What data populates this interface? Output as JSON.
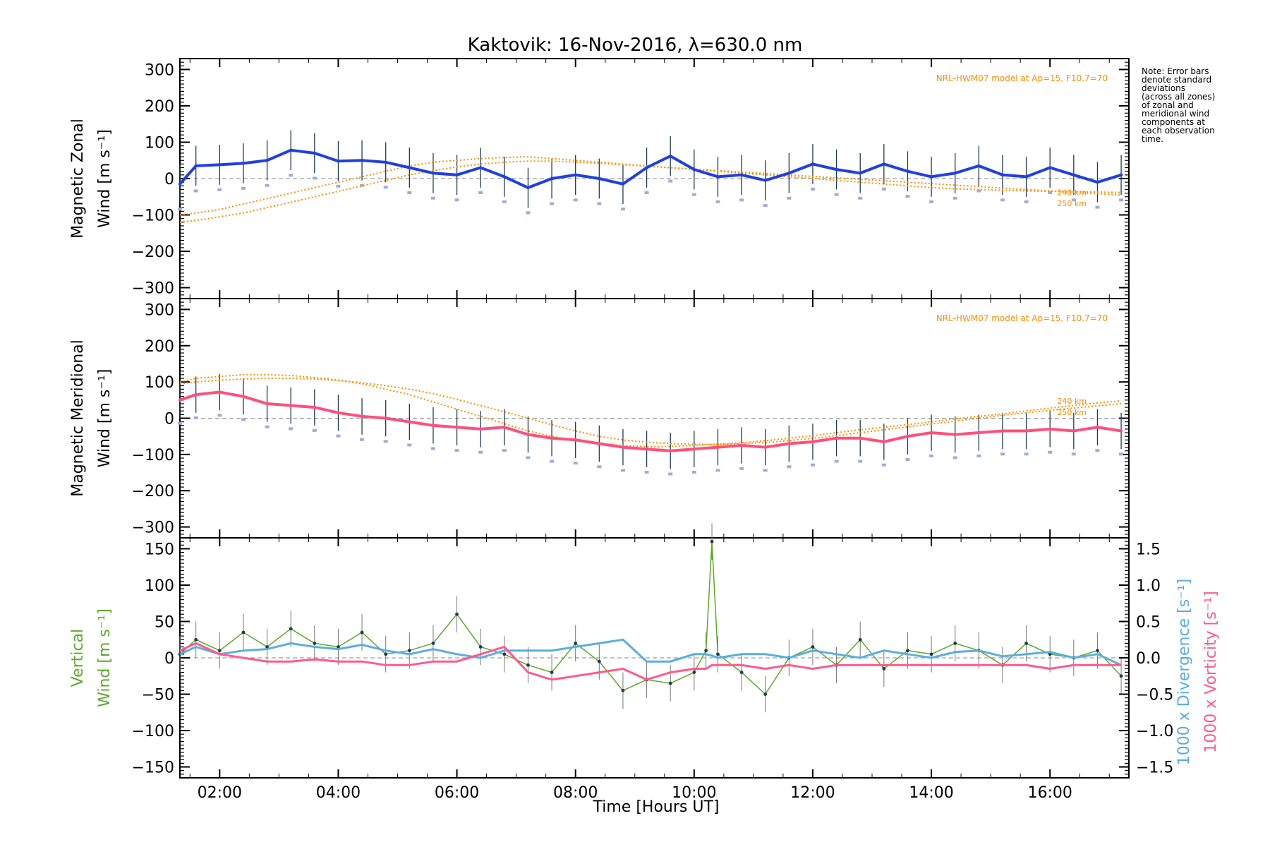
{
  "title": "Kaktovik: 16-Nov-2016, λ=630.0 nm",
  "note": [
    "Note: Error bars",
    "denote standard",
    "deviations",
    "(across all zones)",
    "of zonal and",
    "meridional wind",
    "components at",
    "each observation",
    "time."
  ],
  "model_label": "NRL-HWM07 model at Ap=15, F10.7=70",
  "model_alt_labels": [
    "240 km",
    "250 km"
  ],
  "xlabel": "Time [Hours UT]",
  "colors": {
    "zonal": "#2040e0",
    "zonal_light": "#5aa8e0",
    "meridional": "#ff4f7b",
    "vertical": "#5aaa28",
    "divergence": "#5aaee0",
    "vorticity": "#ff5a8c",
    "model": "#ff8c00",
    "errbar": "#1e3c50",
    "zone_points": "#a8a8d8"
  },
  "chart_data": [
    {
      "type": "line",
      "panel": "zonal",
      "ylabel_lines": [
        "Magnetic Zonal",
        "Wind [m s⁻¹]"
      ],
      "xlim": [
        1.33,
        17.33
      ],
      "ylim": [
        -330,
        330
      ],
      "yticks": [
        -300,
        -200,
        -100,
        0,
        100,
        200,
        300
      ],
      "x": [
        1.33,
        1.6,
        2.0,
        2.4,
        2.8,
        3.2,
        3.6,
        4.0,
        4.4,
        4.8,
        5.2,
        5.6,
        6.0,
        6.4,
        6.8,
        7.2,
        7.6,
        8.0,
        8.4,
        8.8,
        9.2,
        9.6,
        10.0,
        10.4,
        10.8,
        11.2,
        11.6,
        12.0,
        12.4,
        12.8,
        13.2,
        13.6,
        14.0,
        14.4,
        14.8,
        15.2,
        15.6,
        16.0,
        16.4,
        16.8,
        17.2
      ],
      "series": [
        {
          "values": [
            -15,
            35,
            38,
            42,
            50,
            78,
            70,
            48,
            50,
            45,
            30,
            15,
            10,
            30,
            5,
            -25,
            0,
            10,
            0,
            -15,
            30,
            62,
            25,
            5,
            10,
            -5,
            15,
            40,
            25,
            15,
            40,
            20,
            5,
            15,
            35,
            10,
            5,
            30,
            10,
            -10,
            10
          ]
        },
        {
          "values": [
            -100,
            -95,
            -85,
            -70,
            -55,
            -40,
            -25,
            -10,
            5,
            20,
            35,
            45,
            50,
            55,
            58,
            60,
            55,
            50,
            45,
            40,
            35,
            30,
            25,
            20,
            15,
            10,
            5,
            0,
            -5,
            -10,
            -15,
            -20,
            -25,
            -28,
            -30,
            -32,
            -34,
            -35,
            -36,
            -37,
            -38
          ]
        },
        {
          "values": [
            -120,
            -115,
            -105,
            -95,
            -80,
            -65,
            -50,
            -35,
            -20,
            -5,
            10,
            22,
            32,
            40,
            45,
            48,
            48,
            45,
            42,
            38,
            34,
            30,
            26,
            22,
            18,
            14,
            10,
            6,
            2,
            -2,
            -6,
            -10,
            -14,
            -18,
            -22,
            -26,
            -30,
            -34,
            -38,
            -42,
            -45
          ]
        }
      ],
      "errorbar": 55
    },
    {
      "type": "line",
      "panel": "meridional",
      "ylabel_lines": [
        "Magnetic Meridional",
        "Wind [m s⁻¹]"
      ],
      "xlim": [
        1.33,
        17.33
      ],
      "ylim": [
        -330,
        330
      ],
      "yticks": [
        -300,
        -200,
        -100,
        0,
        100,
        200,
        300
      ],
      "x": [
        1.33,
        1.6,
        2.0,
        2.4,
        2.8,
        3.2,
        3.6,
        4.0,
        4.4,
        4.8,
        5.2,
        5.6,
        6.0,
        6.4,
        6.8,
        7.2,
        7.6,
        8.0,
        8.4,
        8.8,
        9.2,
        9.6,
        10.0,
        10.4,
        10.8,
        11.2,
        11.6,
        12.0,
        12.4,
        12.8,
        13.2,
        13.6,
        14.0,
        14.4,
        14.8,
        15.2,
        15.6,
        16.0,
        16.4,
        16.8,
        17.2
      ],
      "series": [
        {
          "values": [
            50,
            65,
            72,
            60,
            40,
            35,
            30,
            15,
            5,
            0,
            -10,
            -20,
            -25,
            -30,
            -25,
            -45,
            -55,
            -60,
            -70,
            -80,
            -85,
            -90,
            -85,
            -80,
            -75,
            -80,
            -70,
            -65,
            -55,
            -55,
            -65,
            -50,
            -40,
            -45,
            -40,
            -35,
            -35,
            -30,
            -35,
            -25,
            -35
          ]
        },
        {
          "values": [
            100,
            110,
            115,
            120,
            120,
            118,
            112,
            105,
            95,
            80,
            65,
            45,
            25,
            5,
            -15,
            -35,
            -50,
            -62,
            -70,
            -75,
            -78,
            -78,
            -75,
            -72,
            -68,
            -62,
            -55,
            -48,
            -40,
            -32,
            -25,
            -18,
            -10,
            -2,
            5,
            12,
            20,
            28,
            35,
            42,
            48
          ]
        },
        {
          "values": [
            95,
            100,
            105,
            108,
            110,
            110,
            108,
            104,
            98,
            90,
            80,
            68,
            52,
            35,
            18,
            0,
            -18,
            -35,
            -50,
            -60,
            -66,
            -70,
            -72,
            -72,
            -70,
            -67,
            -62,
            -55,
            -48,
            -40,
            -32,
            -24,
            -16,
            -8,
            0,
            8,
            15,
            22,
            28,
            34,
            40
          ]
        }
      ],
      "errorbar": 50
    },
    {
      "type": "line",
      "panel": "vertical",
      "ylabel_left_lines": [
        "Vertical",
        "Wind [m s⁻¹]"
      ],
      "ylabel_right": [
        {
          "text": "1000 x Divergence [s⁻¹]"
        },
        {
          "text": "1000 x Vorticity [s⁻¹]"
        }
      ],
      "xlim": [
        1.33,
        17.33
      ],
      "ylim": [
        -165,
        165
      ],
      "yticks": [
        -150,
        -100,
        -50,
        0,
        50,
        100,
        150
      ],
      "y2lim": [
        -1.65,
        1.65
      ],
      "y2ticks": [
        -1.5,
        -1.0,
        -0.5,
        0.0,
        0.5,
        1.0,
        1.5
      ],
      "x": [
        1.33,
        1.6,
        2.0,
        2.4,
        2.8,
        3.2,
        3.6,
        4.0,
        4.4,
        4.8,
        5.2,
        5.6,
        6.0,
        6.4,
        6.8,
        7.2,
        7.6,
        8.0,
        8.4,
        8.8,
        9.2,
        9.6,
        10.0,
        10.2,
        10.3,
        10.4,
        10.8,
        11.2,
        11.6,
        12.0,
        12.4,
        12.8,
        13.2,
        13.6,
        14.0,
        14.4,
        14.8,
        15.2,
        15.6,
        16.0,
        16.4,
        16.8,
        17.2
      ],
      "series": [
        {
          "name": "vertical",
          "values": [
            5,
            25,
            10,
            35,
            15,
            40,
            20,
            15,
            35,
            5,
            10,
            20,
            60,
            15,
            5,
            -10,
            -20,
            20,
            -5,
            -45,
            -30,
            -35,
            -20,
            10,
            160,
            5,
            -20,
            -50,
            0,
            15,
            -10,
            25,
            -15,
            10,
            5,
            20,
            10,
            -10,
            20,
            5,
            0,
            10,
            -25
          ]
        },
        {
          "name": "divergence",
          "values": [
            0.05,
            0.15,
            0.05,
            0.1,
            0.12,
            0.2,
            0.15,
            0.12,
            0.18,
            0.1,
            0.05,
            0.12,
            0.05,
            0.0,
            0.1,
            0.1,
            0.1,
            0.15,
            0.2,
            0.25,
            -0.05,
            -0.05,
            0.05,
            0.05,
            0.03,
            0.0,
            0.05,
            0.05,
            0.0,
            0.1,
            0.05,
            0.0,
            0.1,
            0.05,
            0.0,
            0.08,
            0.1,
            0.02,
            0.05,
            0.08,
            0.0,
            0.05,
            -0.1
          ]
        },
        {
          "name": "vorticity",
          "values": [
            0.1,
            0.2,
            0.05,
            0.0,
            -0.05,
            -0.05,
            -0.02,
            -0.05,
            -0.05,
            -0.1,
            -0.1,
            -0.05,
            -0.05,
            0.05,
            0.15,
            -0.2,
            -0.3,
            -0.25,
            -0.2,
            -0.15,
            -0.3,
            -0.2,
            -0.15,
            -0.15,
            -0.1,
            -0.1,
            -0.1,
            -0.15,
            -0.1,
            -0.15,
            -0.1,
            -0.1,
            -0.1,
            -0.1,
            -0.1,
            -0.1,
            -0.1,
            -0.1,
            -0.1,
            -0.15,
            -0.1,
            -0.1,
            -0.1
          ]
        }
      ],
      "errorbar": 25
    }
  ],
  "xticks": [
    {
      "value": 2,
      "label": "02:00"
    },
    {
      "value": 4,
      "label": "04:00"
    },
    {
      "value": 6,
      "label": "06:00"
    },
    {
      "value": 8,
      "label": "08:00"
    },
    {
      "value": 10,
      "label": "10:00"
    },
    {
      "value": 12,
      "label": "12:00"
    },
    {
      "value": 14,
      "label": "14:00"
    },
    {
      "value": 16,
      "label": "16:00"
    }
  ]
}
